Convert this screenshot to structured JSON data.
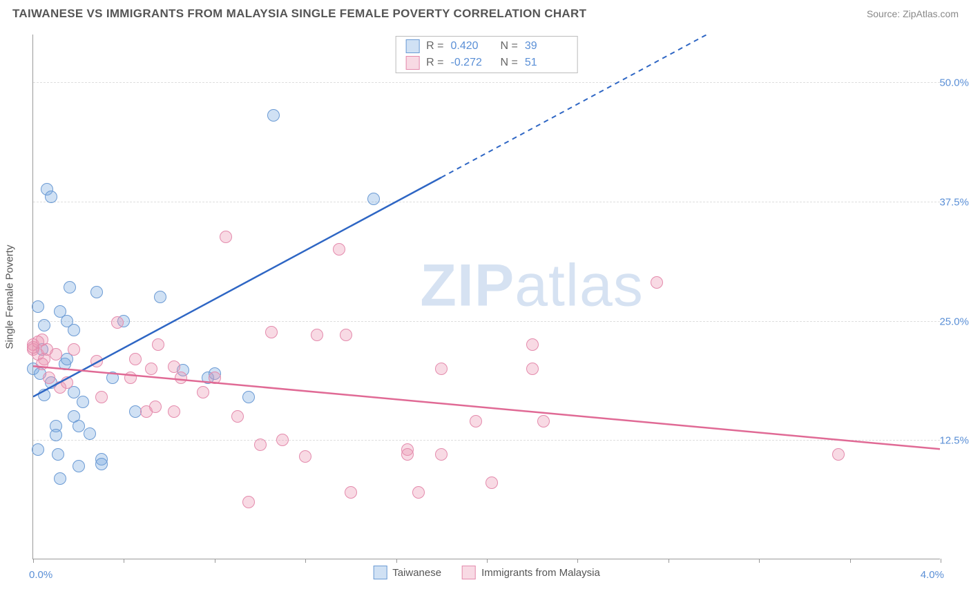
{
  "header": {
    "title": "TAIWANESE VS IMMIGRANTS FROM MALAYSIA SINGLE FEMALE POVERTY CORRELATION CHART",
    "source": "Source: ZipAtlas.com"
  },
  "watermark": {
    "bold": "ZIP",
    "light": "atlas"
  },
  "chart": {
    "type": "scatter",
    "yaxis_title": "Single Female Poverty",
    "xlim": [
      0.0,
      4.0
    ],
    "ylim": [
      0.0,
      55.0
    ],
    "x_start_label": "0.0%",
    "x_end_label": "4.0%",
    "x_ticks": [
      0.0,
      0.4,
      0.8,
      1.2,
      1.6,
      2.0,
      2.4,
      2.8,
      3.2,
      3.6,
      4.0
    ],
    "y_gridlines": [
      12.5,
      25.0,
      37.5,
      50.0
    ],
    "y_tick_labels": [
      "12.5%",
      "25.0%",
      "37.5%",
      "50.0%"
    ],
    "grid_color": "#dddddd",
    "axis_color": "#999999",
    "tick_label_color": "#5a8fd6",
    "background_color": "#ffffff",
    "point_radius": 9,
    "series": [
      {
        "name": "Taiwanese",
        "fill": "rgba(120,168,224,0.35)",
        "stroke": "#6a9ad4",
        "line_color": "#2e66c4",
        "r_value": "0.420",
        "n_value": "39",
        "trend": {
          "x1": 0.0,
          "y1": 17.0,
          "x2": 1.8,
          "y2": 40.0,
          "dash_x2": 3.05,
          "dash_y2": 56.0
        },
        "points": [
          [
            0.0,
            20.0
          ],
          [
            0.02,
            26.5
          ],
          [
            0.03,
            19.5
          ],
          [
            0.04,
            22.0
          ],
          [
            0.05,
            24.5
          ],
          [
            0.05,
            17.2
          ],
          [
            0.06,
            38.8
          ],
          [
            0.08,
            38.0
          ],
          [
            0.08,
            18.5
          ],
          [
            0.1,
            14.0
          ],
          [
            0.1,
            13.0
          ],
          [
            0.11,
            11.0
          ],
          [
            0.12,
            8.5
          ],
          [
            0.12,
            26.0
          ],
          [
            0.14,
            20.5
          ],
          [
            0.15,
            21.0
          ],
          [
            0.15,
            25.0
          ],
          [
            0.16,
            28.5
          ],
          [
            0.18,
            17.5
          ],
          [
            0.18,
            15.0
          ],
          [
            0.2,
            14.0
          ],
          [
            0.2,
            9.8
          ],
          [
            0.22,
            16.5
          ],
          [
            0.25,
            13.2
          ],
          [
            0.28,
            28.0
          ],
          [
            0.3,
            10.5
          ],
          [
            0.3,
            10.0
          ],
          [
            0.35,
            19.0
          ],
          [
            0.4,
            25.0
          ],
          [
            0.45,
            15.5
          ],
          [
            0.56,
            27.5
          ],
          [
            0.66,
            19.8
          ],
          [
            0.77,
            19.0
          ],
          [
            0.8,
            19.5
          ],
          [
            0.95,
            17.0
          ],
          [
            1.06,
            46.5
          ],
          [
            1.5,
            37.8
          ],
          [
            0.02,
            11.5
          ],
          [
            0.18,
            24.0
          ]
        ]
      },
      {
        "name": "Immigrants from Malaysia",
        "fill": "rgba(236,150,178,0.35)",
        "stroke": "#e48aac",
        "line_color": "#e06a95",
        "r_value": "-0.272",
        "n_value": "51",
        "trend": {
          "x1": 0.0,
          "y1": 20.2,
          "x2": 4.0,
          "y2": 11.5
        },
        "points": [
          [
            0.0,
            22.5
          ],
          [
            0.0,
            22.0
          ],
          [
            0.02,
            21.5
          ],
          [
            0.04,
            23.0
          ],
          [
            0.05,
            21.0
          ],
          [
            0.07,
            19.0
          ],
          [
            0.1,
            21.5
          ],
          [
            0.12,
            18.0
          ],
          [
            0.15,
            18.5
          ],
          [
            0.18,
            22.0
          ],
          [
            0.28,
            20.8
          ],
          [
            0.3,
            17.0
          ],
          [
            0.37,
            24.8
          ],
          [
            0.43,
            19.0
          ],
          [
            0.45,
            21.0
          ],
          [
            0.5,
            15.5
          ],
          [
            0.52,
            20.0
          ],
          [
            0.54,
            16.0
          ],
          [
            0.55,
            22.5
          ],
          [
            0.62,
            15.5
          ],
          [
            0.62,
            20.2
          ],
          [
            0.65,
            19.0
          ],
          [
            0.75,
            17.5
          ],
          [
            0.8,
            19.0
          ],
          [
            0.85,
            33.8
          ],
          [
            0.9,
            15.0
          ],
          [
            0.95,
            6.0
          ],
          [
            1.0,
            12.0
          ],
          [
            1.05,
            23.8
          ],
          [
            1.1,
            12.5
          ],
          [
            1.2,
            10.8
          ],
          [
            1.25,
            23.5
          ],
          [
            1.35,
            32.5
          ],
          [
            1.38,
            23.5
          ],
          [
            1.4,
            7.0
          ],
          [
            1.65,
            11.5
          ],
          [
            1.65,
            11.0
          ],
          [
            1.7,
            7.0
          ],
          [
            1.8,
            20.0
          ],
          [
            1.8,
            11.0
          ],
          [
            1.95,
            14.5
          ],
          [
            2.02,
            8.0
          ],
          [
            2.2,
            22.5
          ],
          [
            2.2,
            20.0
          ],
          [
            2.25,
            14.5
          ],
          [
            2.75,
            29.0
          ],
          [
            3.55,
            11.0
          ],
          [
            0.0,
            22.2
          ],
          [
            0.02,
            22.8
          ],
          [
            0.04,
            20.5
          ],
          [
            0.06,
            22.0
          ]
        ]
      }
    ],
    "legend_bottom": [
      {
        "label": "Taiwanese",
        "fill": "rgba(120,168,224,0.35)",
        "stroke": "#6a9ad4"
      },
      {
        "label": "Immigrants from Malaysia",
        "fill": "rgba(236,150,178,0.35)",
        "stroke": "#e48aac"
      }
    ]
  }
}
